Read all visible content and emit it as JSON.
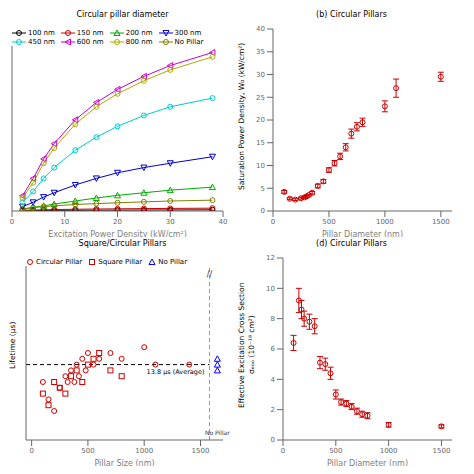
{
  "chart_data": [
    {
      "type": "line",
      "title": "Circular pillar diameter",
      "xlabel": "Excitation Power Density (kW/cm²)",
      "series": [
        {
          "name": "100 nm",
          "color": "#000000",
          "marker": "circle",
          "x": [
            2,
            4,
            6,
            8,
            12,
            16,
            20,
            25,
            30,
            38
          ],
          "values": [
            0.08,
            0.1,
            0.12,
            0.14,
            0.16,
            0.18,
            0.2,
            0.22,
            0.24,
            0.27
          ]
        },
        {
          "name": "150 nm",
          "color": "#cc0000",
          "marker": "circle",
          "x": [
            2,
            4,
            6,
            8,
            12,
            16,
            20,
            25,
            30,
            38
          ],
          "values": [
            0.15,
            0.22,
            0.28,
            0.33,
            0.4,
            0.46,
            0.5,
            0.55,
            0.6,
            0.65
          ]
        },
        {
          "name": "200 nm",
          "color": "#00aa00",
          "marker": "triangle_up",
          "x": [
            2,
            4,
            6,
            8,
            12,
            16,
            20,
            25,
            30,
            38
          ],
          "values": [
            0.4,
            0.8,
            1.2,
            1.6,
            2.3,
            3.0,
            3.6,
            4.2,
            4.8,
            5.5
          ]
        },
        {
          "name": "300 nm",
          "color": "#0000cc",
          "marker": "triangle_down",
          "x": [
            2,
            4,
            6,
            8,
            12,
            16,
            20,
            25,
            30,
            38
          ],
          "values": [
            1.0,
            2.0,
            3.2,
            4.2,
            6.0,
            7.5,
            8.8,
            10.0,
            11.0,
            12.5
          ]
        },
        {
          "name": "450 nm",
          "color": "#00cccc",
          "marker": "circle",
          "x": [
            2,
            4,
            6,
            8,
            12,
            16,
            20,
            25,
            30,
            38
          ],
          "values": [
            2.0,
            4.5,
            7.5,
            10.0,
            14.0,
            17.0,
            19.5,
            22.0,
            24.0,
            26.0
          ]
        },
        {
          "name": "600 nm",
          "color": "#cc00cc",
          "marker": "triangle_left",
          "x": [
            2,
            4,
            6,
            8,
            12,
            16,
            20,
            25,
            30,
            38
          ],
          "values": [
            3.5,
            7.5,
            12.0,
            15.5,
            21.0,
            25.0,
            28.0,
            31.0,
            33.5,
            36.5
          ]
        },
        {
          "name": "800 nm",
          "color": "#aaaa00",
          "marker": "circle",
          "x": [
            2,
            4,
            6,
            8,
            12,
            16,
            20,
            25,
            30,
            38
          ],
          "values": [
            3.0,
            6.5,
            11.0,
            14.5,
            20.0,
            24.0,
            27.0,
            30.0,
            32.5,
            35.5
          ]
        },
        {
          "name": "No Pillar",
          "color": "#808000",
          "marker": "circle",
          "x": [
            2,
            4,
            6,
            8,
            12,
            16,
            20,
            25,
            30,
            38
          ],
          "values": [
            0.5,
            0.8,
            1.0,
            1.2,
            1.5,
            1.7,
            1.9,
            2.1,
            2.3,
            2.5
          ]
        }
      ],
      "xlim": [
        0,
        40
      ],
      "xticks": [
        0,
        10,
        20,
        30,
        40
      ],
      "ylim": [
        0,
        38
      ],
      "tick_labels": "x",
      "legend": "upper left",
      "grid": false
    },
    {
      "type": "scatter",
      "title": "(b) Circular Pillars",
      "xlabel": "Pillar Diameter (nm)",
      "ylabel": "Saturation Power Density, W₀ (kW/cm²)",
      "color": "#cc0000",
      "marker": "circle",
      "x": [
        100,
        150,
        200,
        250,
        280,
        300,
        320,
        350,
        400,
        450,
        500,
        550,
        600,
        650,
        700,
        750,
        800,
        1000,
        1100,
        1500
      ],
      "values": [
        4.2,
        2.7,
        2.5,
        2.8,
        3.0,
        3.2,
        3.5,
        4.0,
        5.5,
        6.5,
        9.0,
        10.5,
        12.0,
        14.0,
        17.0,
        18.5,
        19.5,
        23.0,
        27.0,
        29.5
      ],
      "errors": [
        0.3,
        0.2,
        0.2,
        0.2,
        0.2,
        0.2,
        0.2,
        0.3,
        0.4,
        0.4,
        0.5,
        0.6,
        0.7,
        0.8,
        1.0,
        0.9,
        0.9,
        1.2,
        2.0,
        1.0
      ],
      "xlim": [
        0,
        1600
      ],
      "xticks": [
        0,
        500,
        1000,
        1500
      ],
      "ylim": [
        0,
        40
      ],
      "yticks": [
        0,
        5,
        10,
        15,
        20,
        25,
        30,
        35,
        40
      ],
      "grid": false
    },
    {
      "type": "scatter",
      "title": "Square/Circular Pillars",
      "xlabel": "Pillar Size (nm)",
      "ylabel": "Lifetime (μs)",
      "series": [
        {
          "name": "Circular Pillar",
          "color": "#cc0000",
          "marker": "circle",
          "x": [
            100,
            150,
            200,
            250,
            300,
            320,
            350,
            380,
            400,
            420,
            450,
            480,
            500,
            550,
            600,
            700,
            800,
            1000,
            1100,
            1400
          ],
          "values": [
            13.5,
            13.2,
            13.0,
            13.4,
            13.6,
            13.5,
            13.7,
            13.5,
            13.8,
            13.6,
            13.9,
            13.7,
            14.0,
            13.8,
            13.9,
            14.0,
            13.9,
            14.1,
            13.8,
            13.8
          ]
        },
        {
          "name": "Square Pillar",
          "color": "#cc0000",
          "marker": "square",
          "x": [
            100,
            150,
            200,
            250,
            300,
            350,
            400,
            450,
            500,
            550,
            600,
            700,
            800
          ],
          "values": [
            13.3,
            13.1,
            13.5,
            13.4,
            13.3,
            13.6,
            13.7,
            13.5,
            13.8,
            13.9,
            14.0,
            13.7,
            13.6
          ]
        },
        {
          "name": "No Pillar",
          "color": "blue",
          "marker": "triangle_up",
          "x": [
            1650,
            1650,
            1650
          ],
          "values": [
            13.8,
            13.7,
            13.9
          ]
        }
      ],
      "reference_line": {
        "y": 13.8,
        "label": "13.8 μs (Average)"
      },
      "break": {
        "x": 1580,
        "label": "//"
      },
      "annotations": [
        {
          "text": "No Pillar",
          "x": 1650
        }
      ],
      "xlim": [
        -50,
        1700
      ],
      "xticks": [
        0,
        500,
        1000,
        1500
      ],
      "ylim": [
        12.5,
        15.5
      ],
      "tick_labels": "x",
      "legend": "upper left",
      "grid": false
    },
    {
      "type": "scatter",
      "title": "(d) Circular Pillars",
      "xlabel": "Pillar Diameter (nm)",
      "ylabel": "Effective Excitation Cross Section\nσₑₒₒ (10⁻¹⁸ cm²)",
      "color": "#cc0000",
      "marker": "circle",
      "x": [
        100,
        150,
        175,
        200,
        250,
        300,
        350,
        400,
        450,
        500,
        550,
        600,
        650,
        700,
        750,
        800,
        1000,
        1500
      ],
      "values": [
        6.4,
        9.2,
        8.6,
        8.0,
        7.8,
        7.5,
        5.1,
        5.0,
        4.4,
        3.0,
        2.5,
        2.4,
        2.2,
        1.9,
        1.7,
        1.6,
        1.0,
        0.9
      ],
      "errors": [
        0.5,
        0.8,
        0.6,
        0.5,
        0.5,
        0.5,
        0.4,
        0.4,
        0.4,
        0.3,
        0.2,
        0.2,
        0.2,
        0.2,
        0.2,
        0.2,
        0.15,
        0.1
      ],
      "xlim": [
        0,
        1600
      ],
      "xticks": [
        0,
        500,
        1000,
        1500
      ],
      "ylim": [
        0,
        12
      ],
      "yticks": [
        0,
        2,
        4,
        6,
        8,
        10,
        12
      ],
      "grid": false
    }
  ]
}
